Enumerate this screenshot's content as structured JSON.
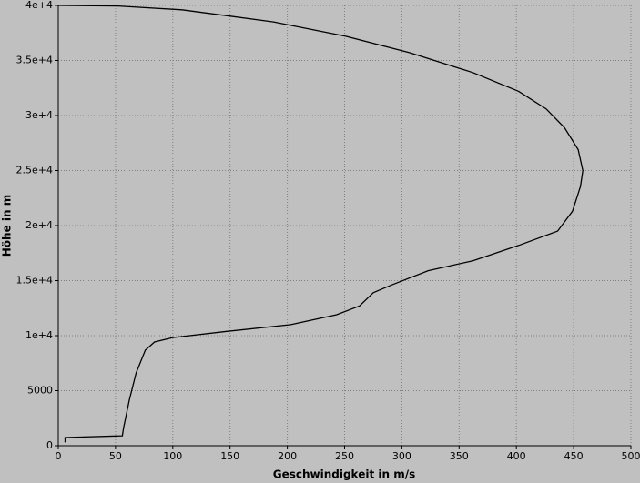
{
  "chart_data": {
    "type": "line",
    "xlabel": "Geschwindigkeit in m/s",
    "ylabel": "Höhe in m",
    "color": "#000000",
    "grid": true,
    "xlim": [
      0,
      500
    ],
    "ylim": [
      0,
      40000
    ],
    "xticks": [
      0,
      50,
      100,
      150,
      200,
      250,
      300,
      350,
      400,
      450,
      500
    ],
    "yticks": [
      0,
      5000,
      {
        "value": 10000,
        "label": "1e+4"
      },
      {
        "value": 15000,
        "label": "1.5e+4"
      },
      {
        "value": 20000,
        "label": "2e+4"
      },
      {
        "value": 25000,
        "label": "2.5e+4"
      },
      {
        "value": 30000,
        "label": "3e+4"
      },
      {
        "value": 35000,
        "label": "3.5e+4"
      },
      {
        "value": 40000,
        "label": "4e+4"
      }
    ],
    "x": [
      6,
      6,
      56,
      57,
      62,
      68,
      76,
      84,
      100,
      148,
      203,
      243,
      263,
      275,
      291,
      323,
      362,
      402,
      436,
      449,
      456,
      458,
      454,
      442,
      426,
      402,
      362,
      307,
      251,
      188,
      108,
      52,
      0
    ],
    "values": [
      300,
      740,
      900,
      1600,
      4130,
      6600,
      8680,
      9420,
      9830,
      10400,
      11000,
      11900,
      12700,
      13900,
      14600,
      15900,
      16800,
      18200,
      19500,
      21300,
      23550,
      25000,
      26900,
      28900,
      30600,
      32200,
      33900,
      35700,
      37200,
      38500,
      39600,
      39950,
      40000
    ]
  }
}
